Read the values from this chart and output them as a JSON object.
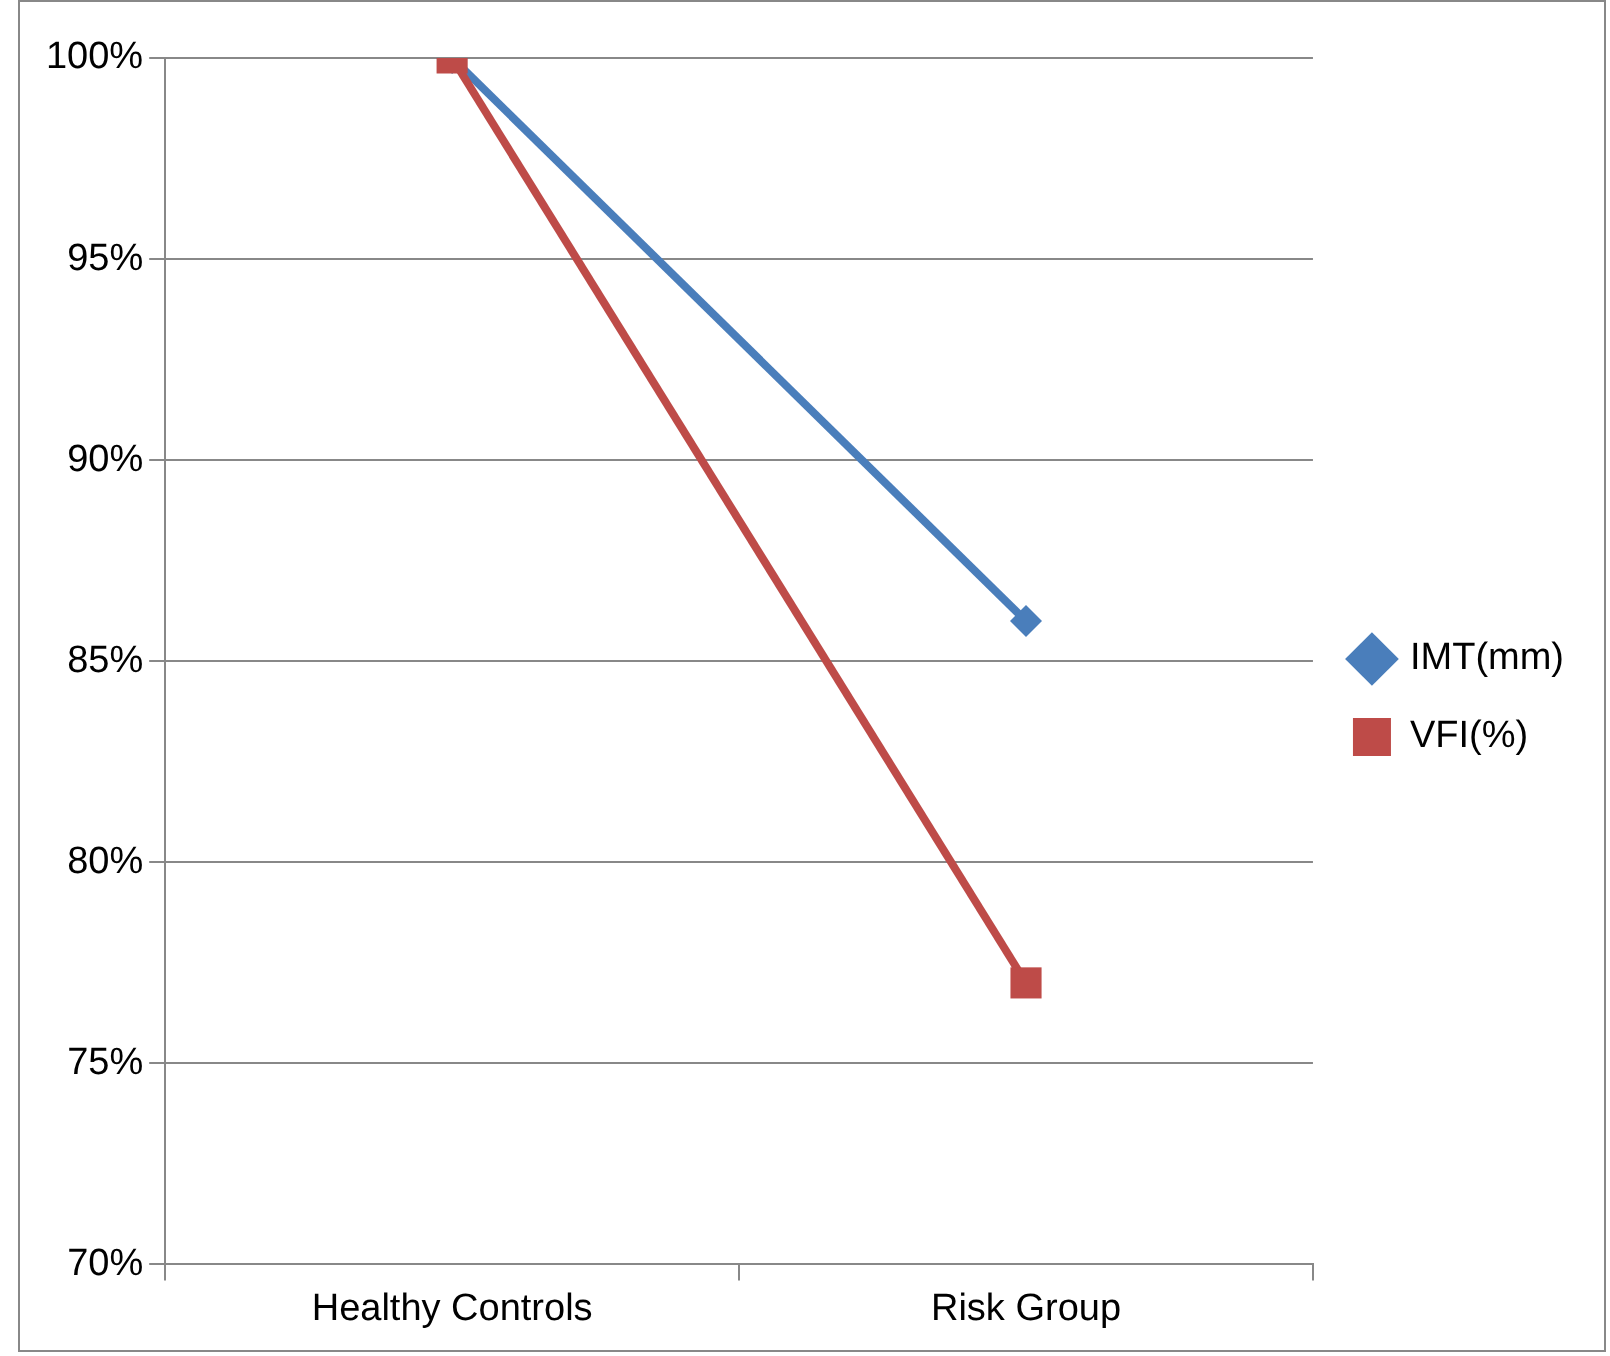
{
  "chart_data": {
    "type": "line",
    "categories": [
      "Healthy Controls",
      "Risk Group"
    ],
    "series": [
      {
        "name": "IMT(mm)",
        "color": "#4a7ebb",
        "values": [
          100,
          86
        ],
        "marker": "diamond"
      },
      {
        "name": "VFI(%)",
        "color": "#be4b48",
        "values": [
          100,
          77
        ],
        "marker": "square"
      }
    ],
    "ylim": [
      70,
      100
    ],
    "yticks": [
      {
        "value": 70,
        "label": "70%"
      },
      {
        "value": 75,
        "label": "75%"
      },
      {
        "value": 80,
        "label": "80%"
      },
      {
        "value": 85,
        "label": "85%"
      },
      {
        "value": 90,
        "label": "90%"
      },
      {
        "value": 95,
        "label": "95%"
      },
      {
        "value": 100,
        "label": "100%"
      }
    ],
    "grid": "y",
    "legend": "right",
    "line_style": "solid"
  }
}
